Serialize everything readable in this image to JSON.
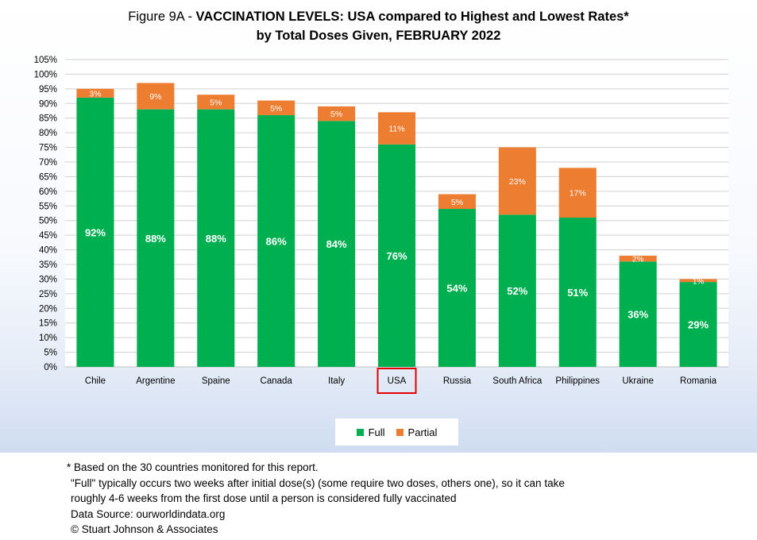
{
  "title": {
    "prefix": "Figure 9A - ",
    "bold_part": "VACCINATION LEVELS:  USA compared to Highest and Lowest Rates*",
    "subtitle": "by Total Doses Given, FEBRUARY 2022"
  },
  "colors": {
    "full": "#00b050",
    "partial": "#ed7d31",
    "highlight_box": "#e00000"
  },
  "chart_data": {
    "type": "bar",
    "stacked": true,
    "categories": [
      "Chile",
      "Argentine",
      "Spaine",
      "Canada",
      "Italy",
      "USA",
      "Russia",
      "South Africa",
      "Philippines",
      "Ukraine",
      "Romania"
    ],
    "series": [
      {
        "name": "Full",
        "values": [
          92,
          88,
          88,
          86,
          84,
          76,
          54,
          52,
          51,
          36,
          29
        ]
      },
      {
        "name": "Partial",
        "values": [
          3,
          9,
          5,
          5,
          5,
          11,
          5,
          23,
          17,
          2,
          1
        ]
      }
    ],
    "ylim": [
      0,
      105
    ],
    "ytick_step": 5,
    "y_unit": "%",
    "grid": true,
    "highlight_category": "USA",
    "legend_position": "bottom-center"
  },
  "footnotes": [
    "* Based on the 30 countries monitored for this report.",
    "\"Full\" typically occurs two weeks after initial dose(s) (some require two doses, others one),  so it can take",
    "roughly 4-6 weeks from the first dose until a person is considered fully vaccinated",
    "Data Source:  ourworldindata.org",
    "© Stuart Johnson & Associates"
  ]
}
